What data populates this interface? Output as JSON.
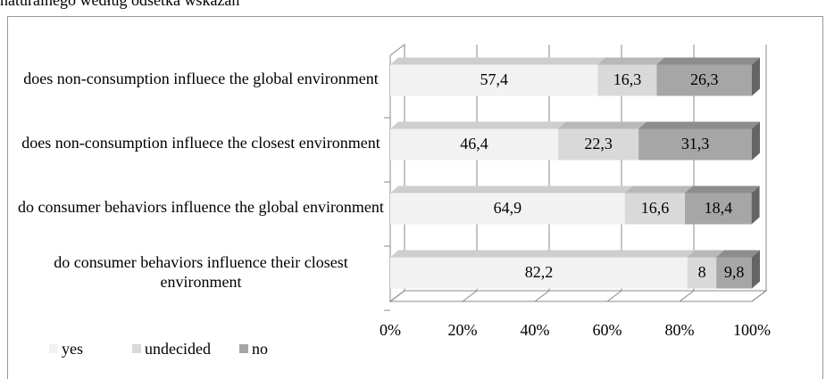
{
  "chart_data": {
    "type": "bar",
    "orientation": "horizontal",
    "stacked": true,
    "title": "naturalnego według odsetka wskazań",
    "categories": [
      "does non-consumption influece the global environment",
      "does non-consumption influece the closest environment",
      "do consumer behaviors influence the global environment",
      "do consumer behaviors influence their closest environment"
    ],
    "series": [
      {
        "name": "yes",
        "color": "#f2f2f2",
        "values": [
          57.4,
          46.4,
          64.9,
          82.2
        ],
        "value_labels": [
          "57,4",
          "46,4",
          "64,9",
          "82,2"
        ]
      },
      {
        "name": "undecided",
        "color": "#d9d9d9",
        "values": [
          16.3,
          22.3,
          16.6,
          8
        ],
        "value_labels": [
          "16,3",
          "22,3",
          "16,6",
          "8"
        ]
      },
      {
        "name": "no",
        "color": "#a6a6a6",
        "values": [
          26.3,
          31.3,
          18.4,
          9.8
        ],
        "value_labels": [
          "26,3",
          "31,3",
          "18,4",
          "9,8"
        ]
      }
    ],
    "xlim": [
      0,
      100
    ],
    "xticks": [
      {
        "value": 0,
        "label": "0%"
      },
      {
        "value": 20,
        "label": "20%"
      },
      {
        "value": 40,
        "label": "40%"
      },
      {
        "value": 60,
        "label": "60%"
      },
      {
        "value": 80,
        "label": "80%"
      },
      {
        "value": 100,
        "label": "100%"
      }
    ],
    "grid": true,
    "legend": "bottom-left"
  }
}
